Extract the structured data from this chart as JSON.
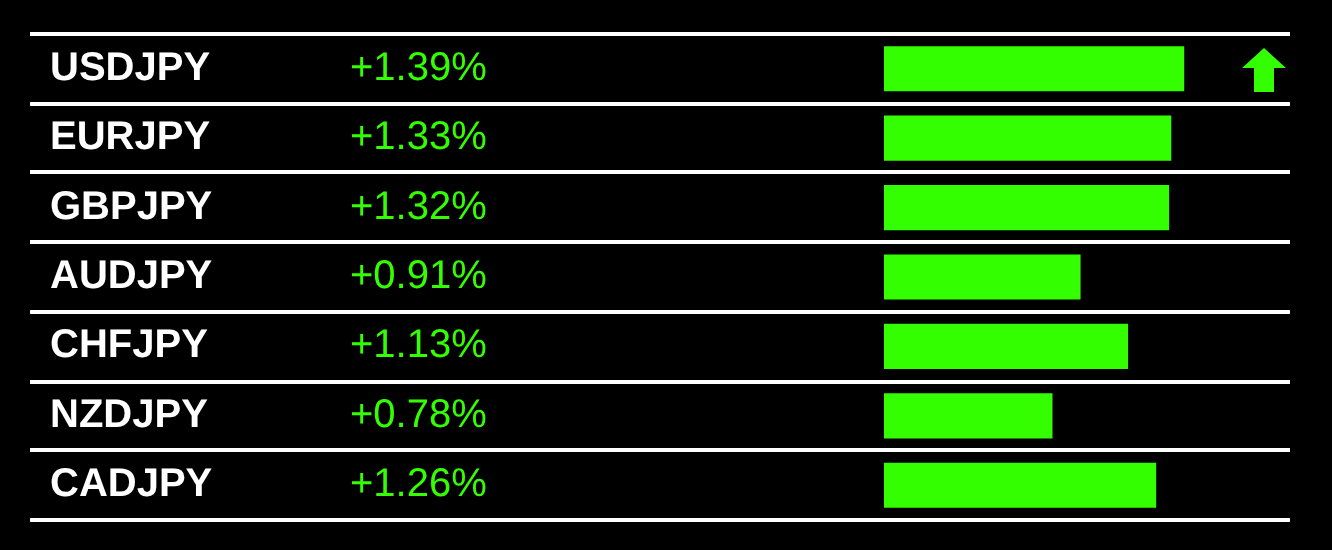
{
  "chart_data": {
    "type": "bar",
    "orientation": "horizontal",
    "categories": [
      "USDJPY",
      "EURJPY",
      "GBPJPY",
      "AUDJPY",
      "CHFJPY",
      "NZDJPY",
      "CADJPY"
    ],
    "values": [
      1.39,
      1.33,
      1.32,
      0.91,
      1.13,
      0.78,
      1.26
    ],
    "value_labels": [
      "+1.39%",
      "+1.33%",
      "+1.32%",
      "+0.91%",
      "+1.13%",
      "+0.78%",
      "+1.26%"
    ],
    "color": "#33ff00",
    "tick_labels": "y",
    "grid": "y",
    "legend": false
  }
}
